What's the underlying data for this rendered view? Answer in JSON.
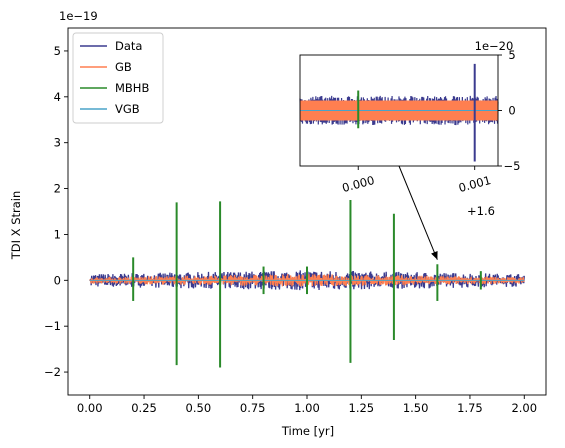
{
  "chart_data": {
    "type": "line",
    "xlabel": "Time [yr]",
    "ylabel": "TDI X Strain",
    "y_offset_text": "1e−19",
    "xlim": [
      -0.1,
      2.1
    ],
    "ylim": [
      -2.5,
      5.5
    ],
    "x_ticks": [
      0.0,
      0.25,
      0.5,
      0.75,
      1.0,
      1.25,
      1.5,
      1.75,
      2.0
    ],
    "x_tick_labels": [
      "0.00",
      "0.25",
      "0.50",
      "0.75",
      "1.00",
      "1.25",
      "1.50",
      "1.75",
      "2.00"
    ],
    "y_ticks": [
      -2,
      -1,
      0,
      1,
      2,
      3,
      4,
      5
    ],
    "y_tick_labels": [
      "−2",
      "−1",
      "0",
      "1",
      "2",
      "3",
      "4",
      "5"
    ],
    "grid": false,
    "legend": {
      "placement": "upper-left",
      "entries": [
        "Data",
        "GB",
        "MBHB",
        "VGB"
      ]
    },
    "series": [
      {
        "name": "Data",
        "color": "#3b3b8f",
        "noise_envelope": {
          "x": [
            0,
            1,
            2
          ],
          "half_width": [
            0.14,
            0.22,
            0.14
          ]
        }
      },
      {
        "name": "GB",
        "color": "#ff7f50",
        "noise_envelope": {
          "x": [
            0,
            1,
            2
          ],
          "half_width": [
            0.07,
            0.14,
            0.07
          ]
        }
      },
      {
        "name": "MBHB",
        "color": "#2a8a2a",
        "spikes": [
          {
            "x": 0.2,
            "y_max": 0.5,
            "y_min": -0.45
          },
          {
            "x": 0.4,
            "y_max": 1.7,
            "y_min": -1.85
          },
          {
            "x": 0.6,
            "y_max": 1.72,
            "y_min": -1.9
          },
          {
            "x": 0.8,
            "y_max": 0.3,
            "y_min": -0.3
          },
          {
            "x": 1.0,
            "y_max": 0.3,
            "y_min": -0.3
          },
          {
            "x": 1.2,
            "y_max": 1.75,
            "y_min": -1.8
          },
          {
            "x": 1.4,
            "y_max": 1.45,
            "y_min": -1.3
          },
          {
            "x": 1.6,
            "y_max": 0.35,
            "y_min": -0.45
          },
          {
            "x": 1.8,
            "y_max": 0.2,
            "y_min": -0.2
          }
        ]
      },
      {
        "name": "VGB",
        "color": "#4aa3c8",
        "values_note": ""
      }
    ],
    "inset": {
      "xlim": [
        1.5995,
        1.6012
      ],
      "ylim": [
        -5,
        5
      ],
      "x_ticks": [
        1.6,
        1.601
      ],
      "x_tick_labels": [
        "0.000",
        "0.001"
      ],
      "x_offset_text": "+1.6",
      "y_ticks": [
        -5,
        0,
        5
      ],
      "y_tick_labels": [
        "−5",
        "0",
        "5"
      ],
      "y_offset_text": "1e−20",
      "data_half_width": 1.2,
      "gb_half_width": 0.9,
      "spikes": [
        {
          "x": 1.6,
          "y_max": 1.8,
          "y_min": -1.6,
          "color": "#2a8a2a"
        },
        {
          "x": 1.601,
          "y_max": 4.2,
          "y_min": -4.6,
          "color": "#3b3b8f"
        }
      ],
      "arrow_target": {
        "x": 1.6,
        "y": 0.45
      }
    }
  }
}
